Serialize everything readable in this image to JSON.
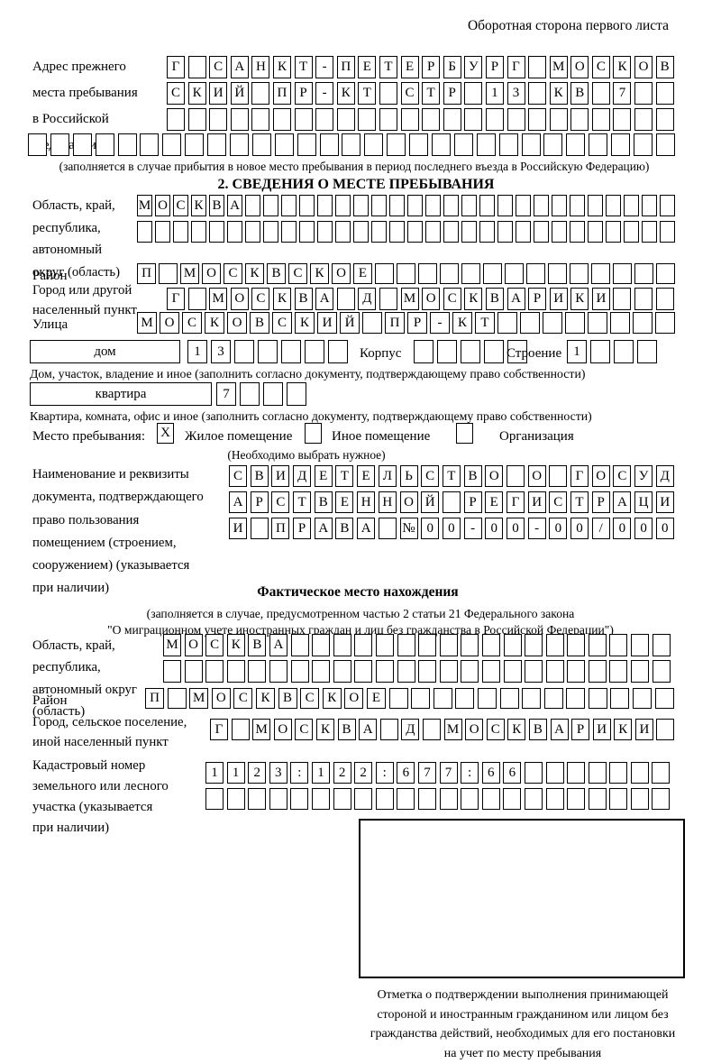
{
  "header": {
    "page_note": "Оборотная сторона первого листа"
  },
  "prev_address": {
    "label_lines": [
      "Адрес прежнего",
      "места пребывания",
      "в Российской",
      "Федерации"
    ],
    "row1": {
      "chars": "Г САНКТ-ПЕТЕРБУРГ МОСКОВ",
      "len": 24
    },
    "row2": {
      "chars": "СКИЙ ПР-КТ СТР 13 КВ 7",
      "len": 24
    },
    "row3": {
      "chars": "",
      "len": 24
    },
    "row4": {
      "chars": "",
      "len": 29
    },
    "note": "(заполняется в случае прибытия в новое место пребывания в период последнего въезда в Российскую Федерацию)"
  },
  "section2": {
    "title": "2. СВЕДЕНИЯ О МЕСТЕ ПРЕБЫВАНИЯ",
    "oblast": {
      "label_lines": [
        "Область, край,",
        "республика,",
        "автономный",
        "округ (область)"
      ],
      "row1": {
        "chars": "МОСКВА",
        "len": 30
      },
      "row2": {
        "chars": "",
        "len": 30
      }
    },
    "raion": {
      "label": "Район",
      "row": {
        "chars": "П МОСКВСКОЕ",
        "len": 25
      }
    },
    "gorod": {
      "label_lines": [
        "Город или другой",
        "населенный пункт"
      ],
      "row": {
        "chars": "Г МОСКВА Д МОСКВАРИКИ",
        "len": 24
      }
    },
    "ulitsa": {
      "label": "Улица",
      "row": {
        "chars": "МОСКОВСКИЙ ПР-КТ",
        "len": 24
      }
    },
    "dom": {
      "box_label": "дом",
      "cells": {
        "chars": "13",
        "len": 7
      },
      "korpus_label": "Корпус",
      "korpus_cells": {
        "chars": "",
        "len": 5
      },
      "stroenie_label": "Строение",
      "stroenie_cells": {
        "chars": "1",
        "len": 4
      },
      "note": "Дом, участок, владение и иное (заполнить согласно документу, подтверждающему право собственности)"
    },
    "kvartira": {
      "box_label": "квартира",
      "cells": {
        "chars": "7",
        "len": 4
      },
      "note": "Квартира, комната, офис и иное (заполнить согласно документу, подтверждающему право собственности)"
    },
    "mesto": {
      "label": "Место пребывания:",
      "options": [
        {
          "mark": "X",
          "label": "Жилое помещение"
        },
        {
          "mark": "",
          "label": "Иное помещение"
        },
        {
          "mark": "",
          "label": "Организация"
        }
      ],
      "note": "(Необходимо выбрать нужное)"
    },
    "document": {
      "label_lines": [
        "Наименование и реквизиты",
        "документа, подтверждающего",
        "право пользования",
        "помещением (строением,",
        "сооружением) (указывается",
        "при наличии)"
      ],
      "row1": {
        "chars": "СВИДЕТЕЛЬСТВО О ГОСУД",
        "len": 21
      },
      "row2": {
        "chars": "АРСТВЕННОЙ РЕГИСТРАЦИ",
        "len": 21
      },
      "row3": {
        "chars": "И ПРАВА №00-00-00/000",
        "len": 21
      }
    }
  },
  "fact": {
    "title": "Фактическое место нахождения",
    "note_lines": [
      "(заполняется в случае, предусмотренном частью 2 статьи 21 Федерального закона",
      "\"О миграционном учете иностранных граждан и лиц без гражданства в Российской Федерации\")"
    ],
    "oblast": {
      "label_lines": [
        "Область, край,",
        "республика,",
        "автономный округ",
        "(область)"
      ],
      "row1": {
        "chars": "МОСКВА",
        "len": 24
      },
      "row2": {
        "chars": "",
        "len": 24
      }
    },
    "raion": {
      "label": "Район",
      "row": {
        "chars": "П МОСКВСКОЕ",
        "len": 24
      }
    },
    "gorod": {
      "label_lines": [
        "Город, сельское поселение,",
        "иной населенный пункт"
      ],
      "row": {
        "chars": "Г МОСКВА Д МОСКВАРИКИ",
        "len": 22
      }
    },
    "kadastr": {
      "label_lines": [
        "Кадастровый номер",
        "земельного или лесного",
        "участка (указывается",
        "при наличии)"
      ],
      "row1": {
        "chars": "1123:122:677:66",
        "len": 22
      },
      "row2": {
        "chars": "",
        "len": 22
      }
    }
  },
  "stamp": {
    "caption_lines": [
      "Отметка о подтверждении выполнения принимающей",
      "стороной и иностранным гражданином или лицом без",
      "гражданства действий, необходимых для его постановки",
      "на учет по месту пребывания"
    ]
  }
}
